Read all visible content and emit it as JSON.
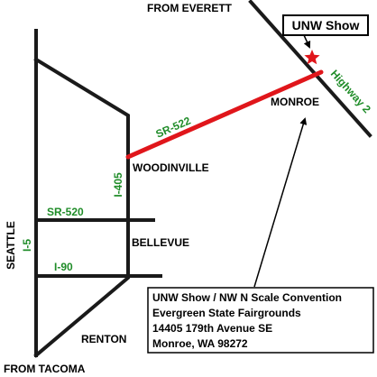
{
  "colors": {
    "road": "#1a1a1a",
    "route": "#e0161b",
    "highway_label": "#1f8c28",
    "star": "#e0161b",
    "background": "#ffffff"
  },
  "places": {
    "from_everett": "FROM EVERETT",
    "monroe": "MONROE",
    "woodinville": "WOODINVILLE",
    "bellevue": "BELLEVUE",
    "seattle": "SEATTLE",
    "renton": "RENTON",
    "from_tacoma": "FROM TACOMA"
  },
  "highways": {
    "sr522": "SR-522",
    "sr520": "SR-520",
    "i405": "I-405",
    "i5": "I-5",
    "i90": "I-90",
    "highway2": "Highway 2"
  },
  "destination": {
    "tag": "UNW Show",
    "marker_icon": "star-icon",
    "address_lines": [
      "UNW Show / NW N Scale Convention",
      "Evergreen State Fairgrounds",
      "14405 179th Avenue SE",
      "Monroe, WA  98272"
    ]
  }
}
